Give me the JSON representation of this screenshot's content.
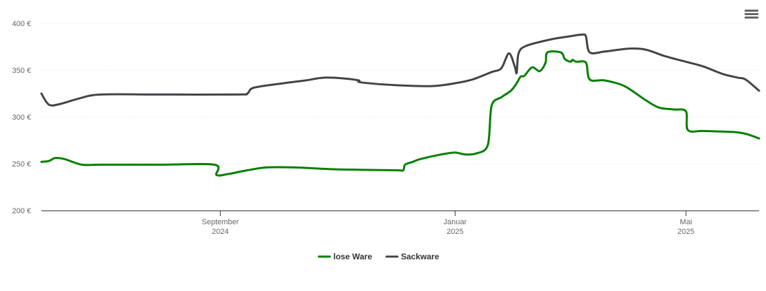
{
  "chart_data": {
    "type": "line",
    "title": "",
    "xlabel": "",
    "ylabel": "",
    "ylim": [
      200,
      400
    ],
    "y_ticks": [
      {
        "value": 200,
        "label": "200 €"
      },
      {
        "value": 250,
        "label": "250 €"
      },
      {
        "value": 300,
        "label": "300 €"
      },
      {
        "value": 350,
        "label": "350 €"
      },
      {
        "value": 400,
        "label": "400 €"
      }
    ],
    "xlim": [
      "2024-05-31",
      "2025-06-08"
    ],
    "x_ticks": [
      {
        "date": "2024-09-01",
        "month": "September",
        "year": "2024"
      },
      {
        "date": "2025-01-01",
        "month": "Januar",
        "year": "2025"
      },
      {
        "date": "2025-05-01",
        "month": "Mai",
        "year": "2025"
      }
    ],
    "grid": true,
    "legend_position": "bottom-center",
    "series": [
      {
        "name": "lose Ware",
        "color": "#008000",
        "points": [
          [
            "2024-05-31",
            252
          ],
          [
            "2024-06-04",
            253
          ],
          [
            "2024-06-07",
            256
          ],
          [
            "2024-06-12",
            255
          ],
          [
            "2024-06-21",
            249
          ],
          [
            "2024-07-01",
            249
          ],
          [
            "2024-08-01",
            249
          ],
          [
            "2024-08-29",
            249
          ],
          [
            "2024-08-30",
            238
          ],
          [
            "2024-09-05",
            239
          ],
          [
            "2024-09-15",
            243
          ],
          [
            "2024-09-25",
            246
          ],
          [
            "2024-10-10",
            246
          ],
          [
            "2024-11-01",
            244
          ],
          [
            "2024-12-01",
            243
          ],
          [
            "2024-12-05",
            243
          ],
          [
            "2024-12-06",
            249
          ],
          [
            "2024-12-10",
            252
          ],
          [
            "2024-12-14",
            255
          ],
          [
            "2024-12-25",
            260
          ],
          [
            "2025-01-01",
            262
          ],
          [
            "2025-01-06",
            260
          ],
          [
            "2025-01-12",
            261
          ],
          [
            "2025-01-18",
            270
          ],
          [
            "2025-01-20",
            312
          ],
          [
            "2025-01-25",
            321
          ],
          [
            "2025-01-30",
            328
          ],
          [
            "2025-02-02",
            336
          ],
          [
            "2025-02-04",
            343
          ],
          [
            "2025-02-06",
            344
          ],
          [
            "2025-02-10",
            353
          ],
          [
            "2025-02-14",
            349
          ],
          [
            "2025-02-17",
            358
          ],
          [
            "2025-02-18",
            369
          ],
          [
            "2025-02-25",
            369
          ],
          [
            "2025-02-27",
            362
          ],
          [
            "2025-03-02",
            359
          ],
          [
            "2025-03-03",
            361
          ],
          [
            "2025-03-05",
            359
          ],
          [
            "2025-03-10",
            358
          ],
          [
            "2025-03-12",
            340
          ],
          [
            "2025-03-20",
            339
          ],
          [
            "2025-03-30",
            333
          ],
          [
            "2025-04-10",
            318
          ],
          [
            "2025-04-17",
            310
          ],
          [
            "2025-04-25",
            308
          ],
          [
            "2025-05-01",
            306
          ],
          [
            "2025-05-02",
            286
          ],
          [
            "2025-05-10",
            285
          ],
          [
            "2025-05-25",
            284
          ],
          [
            "2025-06-01",
            282
          ],
          [
            "2025-06-08",
            277
          ]
        ]
      },
      {
        "name": "Sackware",
        "color": "#434348",
        "points": [
          [
            "2024-05-31",
            325
          ],
          [
            "2024-06-04",
            313
          ],
          [
            "2024-06-10",
            314
          ],
          [
            "2024-06-20",
            320
          ],
          [
            "2024-07-01",
            324
          ],
          [
            "2024-08-01",
            324
          ],
          [
            "2024-09-10",
            324
          ],
          [
            "2024-09-15",
            325
          ],
          [
            "2024-09-18",
            331
          ],
          [
            "2024-09-30",
            335
          ],
          [
            "2024-10-15",
            339
          ],
          [
            "2024-10-25",
            342
          ],
          [
            "2024-11-05",
            341
          ],
          [
            "2024-11-12",
            339
          ],
          [
            "2024-11-13",
            337
          ],
          [
            "2024-12-01",
            334
          ],
          [
            "2024-12-20",
            333
          ],
          [
            "2025-01-01",
            336
          ],
          [
            "2025-01-10",
            340
          ],
          [
            "2025-01-20",
            348
          ],
          [
            "2025-01-25",
            352
          ],
          [
            "2025-01-29",
            368
          ],
          [
            "2025-02-01",
            354
          ],
          [
            "2025-02-02",
            347
          ],
          [
            "2025-02-03",
            368
          ],
          [
            "2025-02-07",
            376
          ],
          [
            "2025-02-20",
            383
          ],
          [
            "2025-03-01",
            386
          ],
          [
            "2025-03-08",
            388
          ],
          [
            "2025-03-10",
            386
          ],
          [
            "2025-03-12",
            369
          ],
          [
            "2025-03-20",
            370
          ],
          [
            "2025-04-01",
            373
          ],
          [
            "2025-04-10",
            372
          ],
          [
            "2025-04-20",
            365
          ],
          [
            "2025-05-01",
            359
          ],
          [
            "2025-05-10",
            354
          ],
          [
            "2025-05-20",
            346
          ],
          [
            "2025-05-28",
            342
          ],
          [
            "2025-06-01",
            340
          ],
          [
            "2025-06-08",
            328
          ]
        ]
      }
    ]
  }
}
